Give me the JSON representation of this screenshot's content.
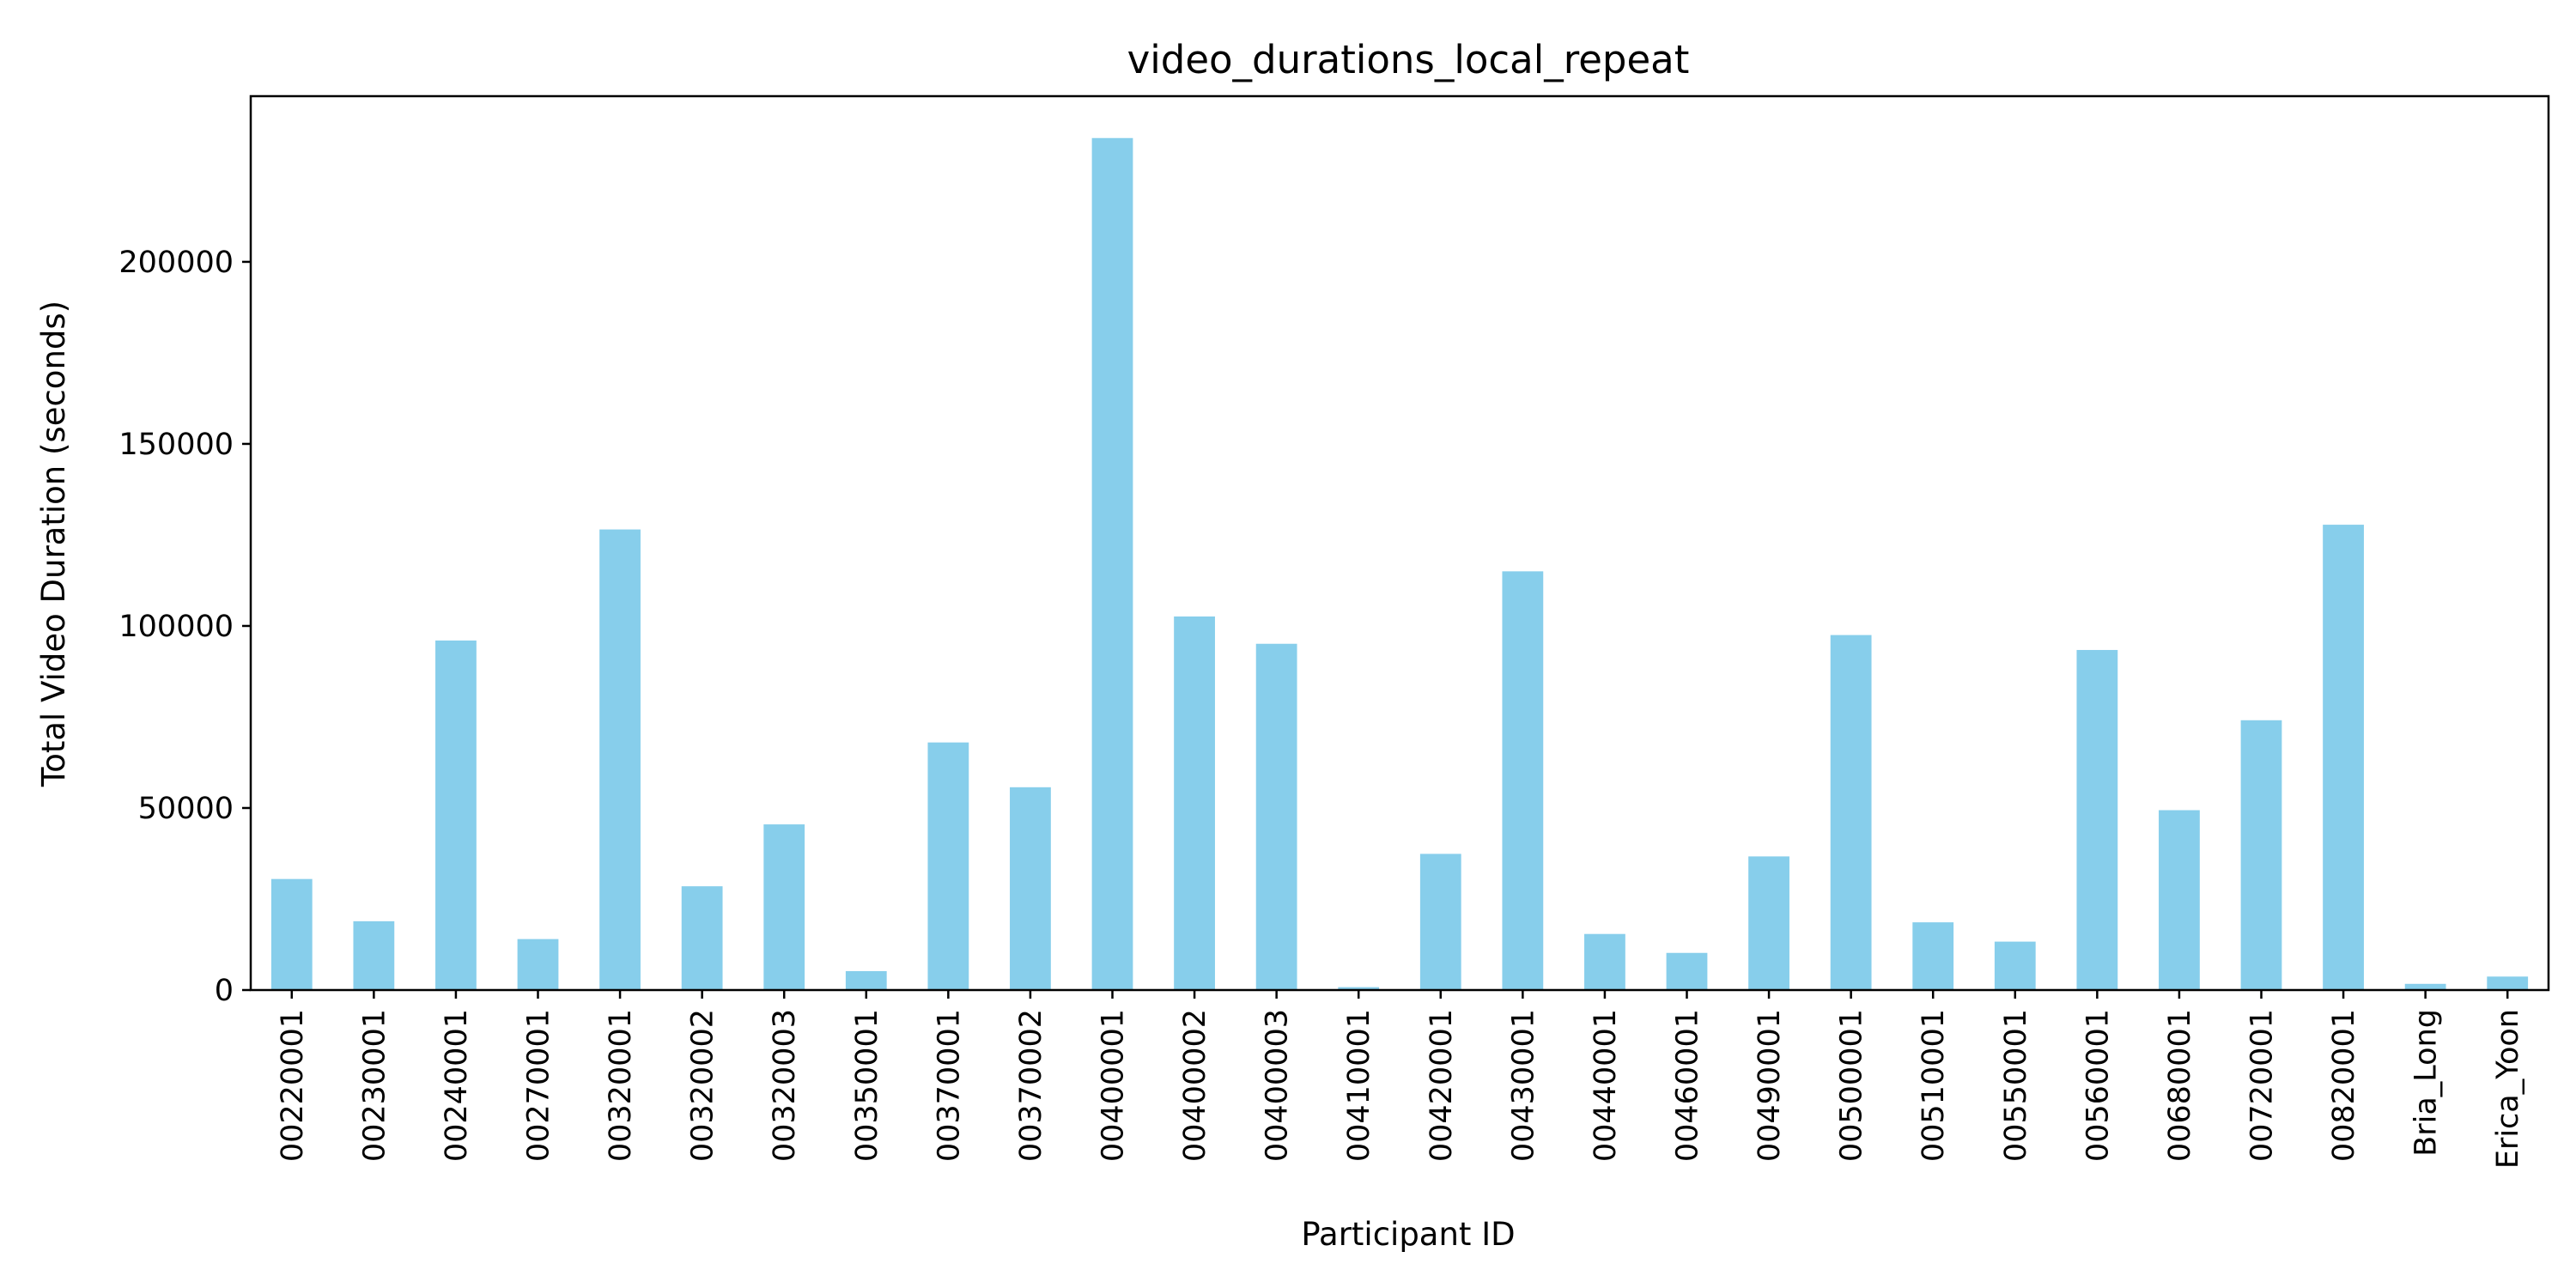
{
  "chart_data": {
    "type": "bar",
    "title": "video_durations_local_repeat",
    "xlabel": "Participant ID",
    "ylabel": "Total Video Duration (seconds)",
    "ylim": [
      0,
      245500
    ],
    "yticks": [
      0,
      50000,
      100000,
      150000,
      200000
    ],
    "ytick_labels": [
      "0",
      "50000",
      "100000",
      "150000",
      "200000"
    ],
    "grid": false,
    "legend": "none",
    "bar_color": "#87ceeb",
    "categories": [
      "00220001",
      "00230001",
      "00240001",
      "00270001",
      "00320001",
      "00320002",
      "00320003",
      "00350001",
      "00370001",
      "00370002",
      "00400001",
      "00400002",
      "00400003",
      "00410001",
      "00420001",
      "00430001",
      "00440001",
      "00460001",
      "00490001",
      "00500001",
      "00510001",
      "00550001",
      "00560001",
      "00680001",
      "00720001",
      "00820001",
      "Bria_Long",
      "Erica_Yoon"
    ],
    "values": [
      30500,
      18900,
      96000,
      14000,
      126500,
      28500,
      45500,
      5200,
      68000,
      55700,
      234000,
      102600,
      95100,
      800,
      37400,
      115000,
      15400,
      10200,
      36700,
      97500,
      18600,
      13300,
      93400,
      49400,
      74100,
      127800,
      1700,
      3700
    ]
  }
}
